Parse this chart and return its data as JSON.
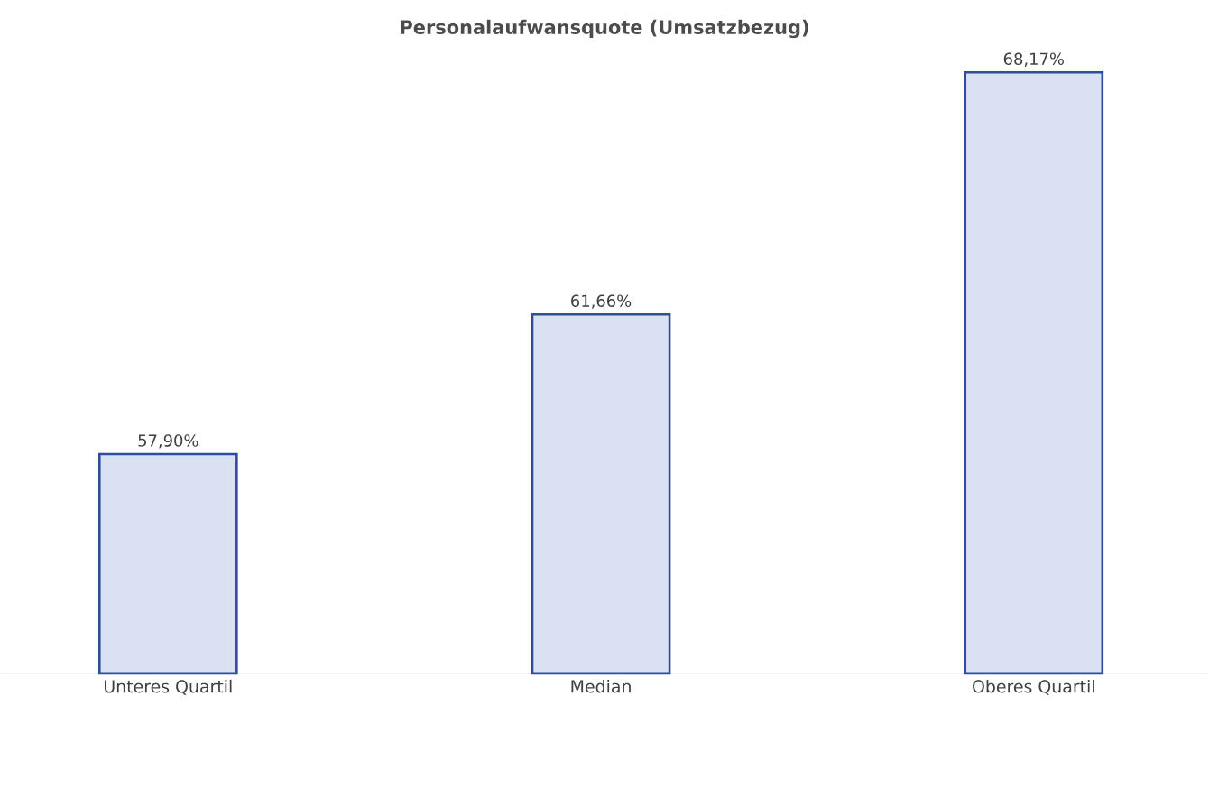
{
  "chart_data": {
    "type": "bar",
    "title": "Personalaufwansquote (Umsatzbezug)",
    "categories": [
      "Unteres Quartil",
      "Median",
      "Oberes Quartil"
    ],
    "values": [
      57.9,
      61.66,
      68.17
    ],
    "value_labels": [
      "57,90%",
      "61,66%",
      "68,17%"
    ],
    "color": "#dae1f3",
    "ylim": [
      52,
      68.17
    ]
  }
}
